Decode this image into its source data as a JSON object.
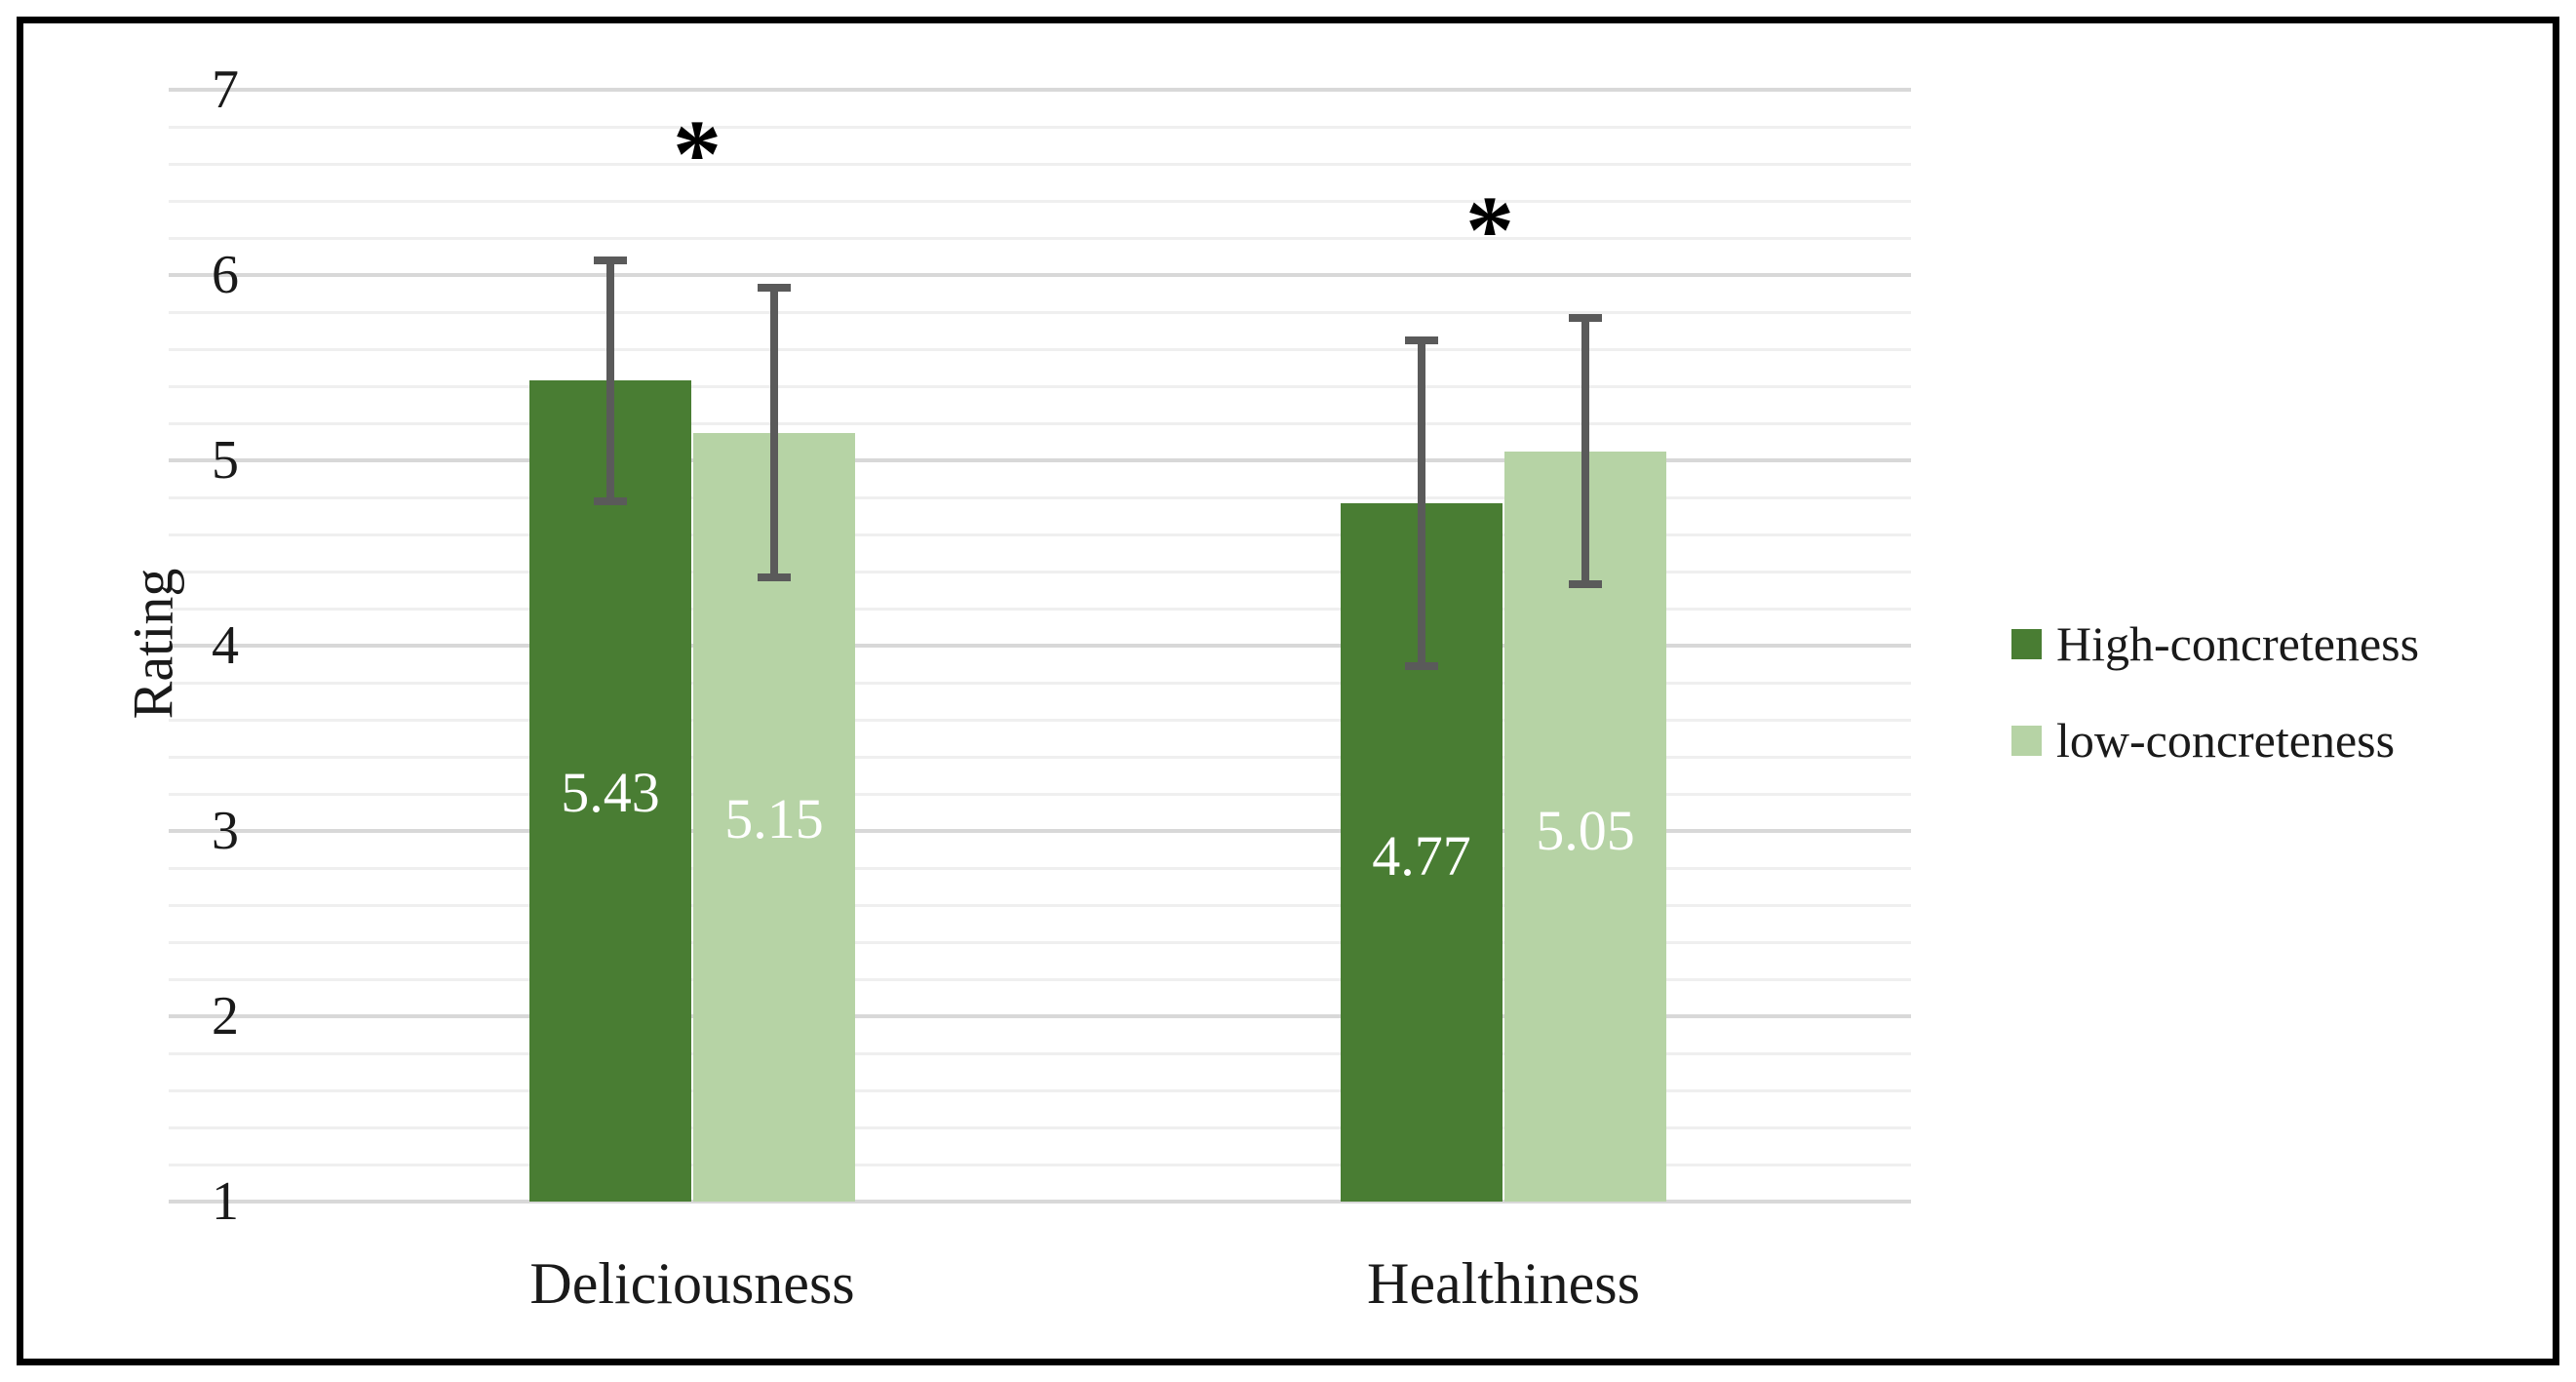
{
  "figure": {
    "background_color": "#ffffff",
    "border_color": "#000000"
  },
  "chart_data": {
    "type": "bar",
    "title": "",
    "xlabel": "",
    "ylabel": "Rating",
    "categories": [
      "Deliciousness",
      "Healthiness"
    ],
    "series": [
      {
        "name": "High-concreteness",
        "color": "#497d33",
        "values": [
          5.43,
          4.77
        ],
        "error_bars": [
          0.65,
          0.88
        ]
      },
      {
        "name": "low-concreteness",
        "color": "#b6d3a5",
        "values": [
          5.15,
          5.05
        ],
        "error_bars": [
          0.78,
          0.72
        ]
      }
    ],
    "data_labels": [
      [
        "5.43",
        "4.77"
      ],
      [
        "5.15",
        "5.05"
      ]
    ],
    "data_label_color": "#ffffff",
    "ylim": [
      1,
      7
    ],
    "yticks": [
      "1",
      "2",
      "3",
      "4",
      "5",
      "6",
      "7"
    ],
    "minor_grid_step": 0.2,
    "grid": true,
    "major_gridline_color": "#d8d8d8",
    "minor_gridline_color": "#efefef",
    "error_bar_color": "#5a5a5a",
    "legend_position": "right",
    "significance": [
      {
        "category": "Deliciousness",
        "symbol": "*"
      },
      {
        "category": "Healthiness",
        "symbol": "*"
      }
    ]
  }
}
